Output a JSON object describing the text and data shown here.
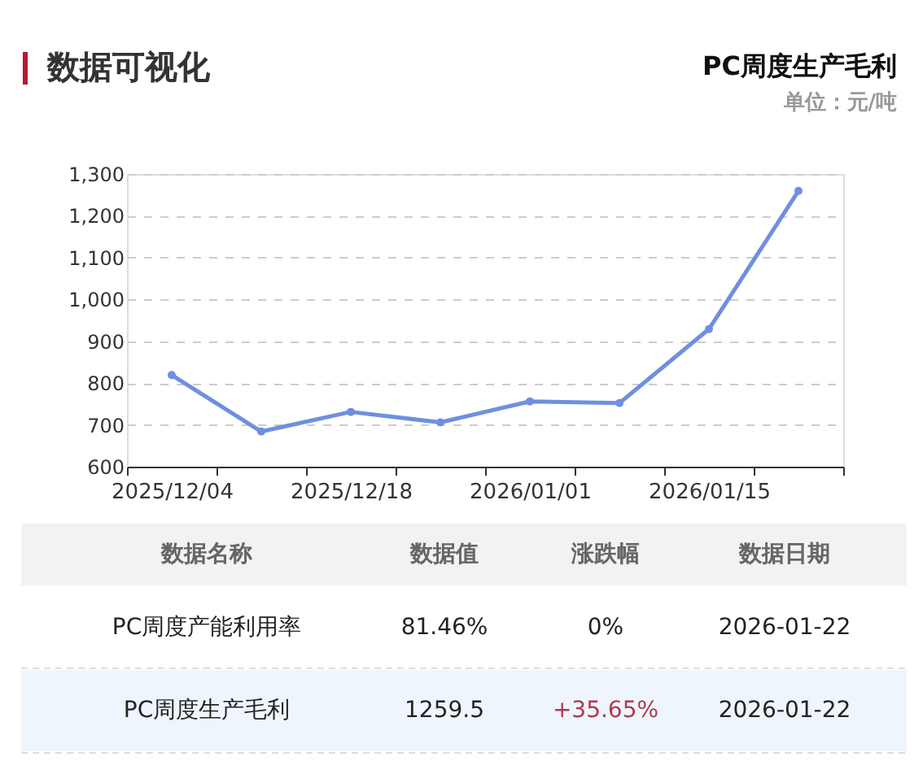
{
  "chart_data": {
    "type": "line",
    "title": "PC周度生产毛利",
    "subtitle": "单位：元/吨",
    "categories": [
      "2025/12/04",
      null,
      "2025/12/18",
      null,
      "2026/01/01",
      null,
      "2026/01/15",
      null
    ],
    "series": [
      {
        "color": "#6f8fe0",
        "values": [
          819,
          684,
          731,
          706,
          756,
          752,
          929,
          1259.5
        ]
      }
    ],
    "ylim": [
      600,
      1300
    ],
    "yticks": [
      600,
      700,
      800,
      900,
      {
        "value": 1000,
        "label": "1,000"
      },
      {
        "value": 1100,
        "label": "1,100"
      },
      {
        "value": 1200,
        "label": "1,200"
      },
      {
        "value": 1300,
        "label": "1,300"
      }
    ],
    "grid": "y",
    "marker": "circle",
    "line_style": "solid",
    "annotations": [
      "数据可视化",
      "数据名称",
      "数据值",
      "涨跌幅",
      "数据日期",
      "PC周度产能利用率",
      "81.46%",
      "0%",
      "2026-01-22",
      "PC周度生产毛利",
      "1259.5",
      "+35.65%",
      "2026-01-22"
    ]
  }
}
